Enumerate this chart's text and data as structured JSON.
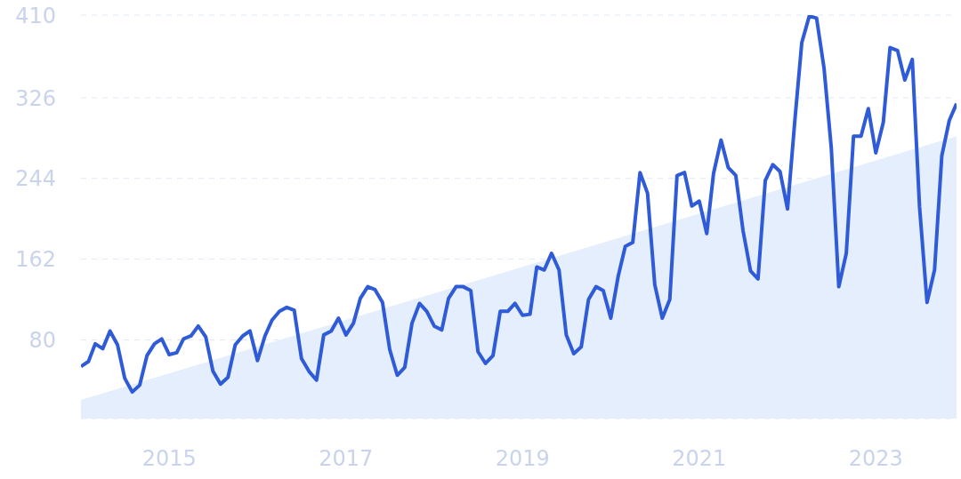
{
  "chart_data": {
    "type": "line",
    "x": [
      "2014-01",
      "2014-02",
      "2014-03",
      "2014-04",
      "2014-05",
      "2014-06",
      "2014-07",
      "2014-08",
      "2014-09",
      "2014-10",
      "2014-11",
      "2014-12",
      "2015-01",
      "2015-02",
      "2015-03",
      "2015-04",
      "2015-05",
      "2015-06",
      "2015-07",
      "2015-08",
      "2015-09",
      "2015-10",
      "2015-11",
      "2015-12",
      "2016-01",
      "2016-02",
      "2016-03",
      "2016-04",
      "2016-05",
      "2016-06",
      "2016-07",
      "2016-08",
      "2016-09",
      "2016-10",
      "2016-11",
      "2016-12",
      "2017-01",
      "2017-02",
      "2017-03",
      "2017-04",
      "2017-05",
      "2017-06",
      "2017-07",
      "2017-08",
      "2017-09",
      "2017-10",
      "2017-11",
      "2017-12",
      "2018-01",
      "2018-02",
      "2018-03",
      "2018-04",
      "2018-05",
      "2018-06",
      "2018-07",
      "2018-08",
      "2018-09",
      "2018-10",
      "2018-11",
      "2018-12",
      "2019-01",
      "2019-02",
      "2019-03",
      "2019-04",
      "2019-05",
      "2019-06",
      "2019-07",
      "2019-08",
      "2019-09",
      "2019-10",
      "2019-11",
      "2019-12",
      "2020-01",
      "2020-02",
      "2020-03",
      "2020-04",
      "2020-05",
      "2020-06",
      "2020-07",
      "2020-08",
      "2020-09",
      "2020-10",
      "2020-11",
      "2020-12",
      "2021-01",
      "2021-02",
      "2021-03",
      "2021-04",
      "2021-05",
      "2021-06",
      "2021-07",
      "2021-08",
      "2021-09",
      "2021-10",
      "2021-11",
      "2021-12",
      "2022-01",
      "2022-02",
      "2022-03",
      "2022-04",
      "2022-05",
      "2022-06",
      "2022-07",
      "2022-08",
      "2022-09",
      "2022-10",
      "2022-11",
      "2022-12",
      "2023-01",
      "2023-02",
      "2023-03",
      "2023-04",
      "2023-05",
      "2023-06",
      "2023-07",
      "2023-08",
      "2023-09",
      "2023-10",
      "2023-11",
      "2023-12"
    ],
    "series": [
      {
        "type": "area",
        "color": "#e4eefc",
        "x": [
          "2014-01",
          "2023-12"
        ],
        "values": [
          19,
          287
        ]
      },
      {
        "color": "#2f5bd8",
        "values": [
          53,
          58,
          76,
          71,
          89,
          75,
          41,
          27,
          34,
          64,
          76,
          81,
          65,
          67,
          81,
          84,
          94,
          83,
          48,
          35,
          42,
          75,
          84,
          89,
          59,
          84,
          100,
          109,
          113,
          110,
          61,
          48,
          39,
          85,
          89,
          102,
          85,
          97,
          122,
          134,
          131,
          118,
          70,
          44,
          52,
          97,
          117,
          109,
          94,
          90,
          122,
          134,
          134,
          130,
          68,
          56,
          64,
          109,
          109,
          117,
          105,
          106,
          154,
          151,
          168,
          151,
          85,
          66,
          73,
          121,
          134,
          130,
          102,
          145,
          175,
          179,
          250,
          229,
          136,
          102,
          121,
          247,
          250,
          216,
          221,
          188,
          249,
          283,
          255,
          247,
          191,
          150,
          142,
          242,
          258,
          251,
          213,
          305,
          382,
          409,
          407,
          356,
          275,
          134,
          168,
          287,
          287,
          315,
          270,
          301,
          377,
          374,
          344,
          365,
          215,
          118,
          151,
          267,
          303,
          320
        ]
      }
    ],
    "xlim": [
      "2014-01",
      "2023-12"
    ],
    "xticks": [
      "2015",
      "2017",
      "2019",
      "2021",
      "2023"
    ],
    "ylim": [
      0,
      410
    ],
    "yticks": [
      80,
      162,
      244,
      326,
      410
    ],
    "grid": "y",
    "marker": "none",
    "line_style": "solid"
  }
}
